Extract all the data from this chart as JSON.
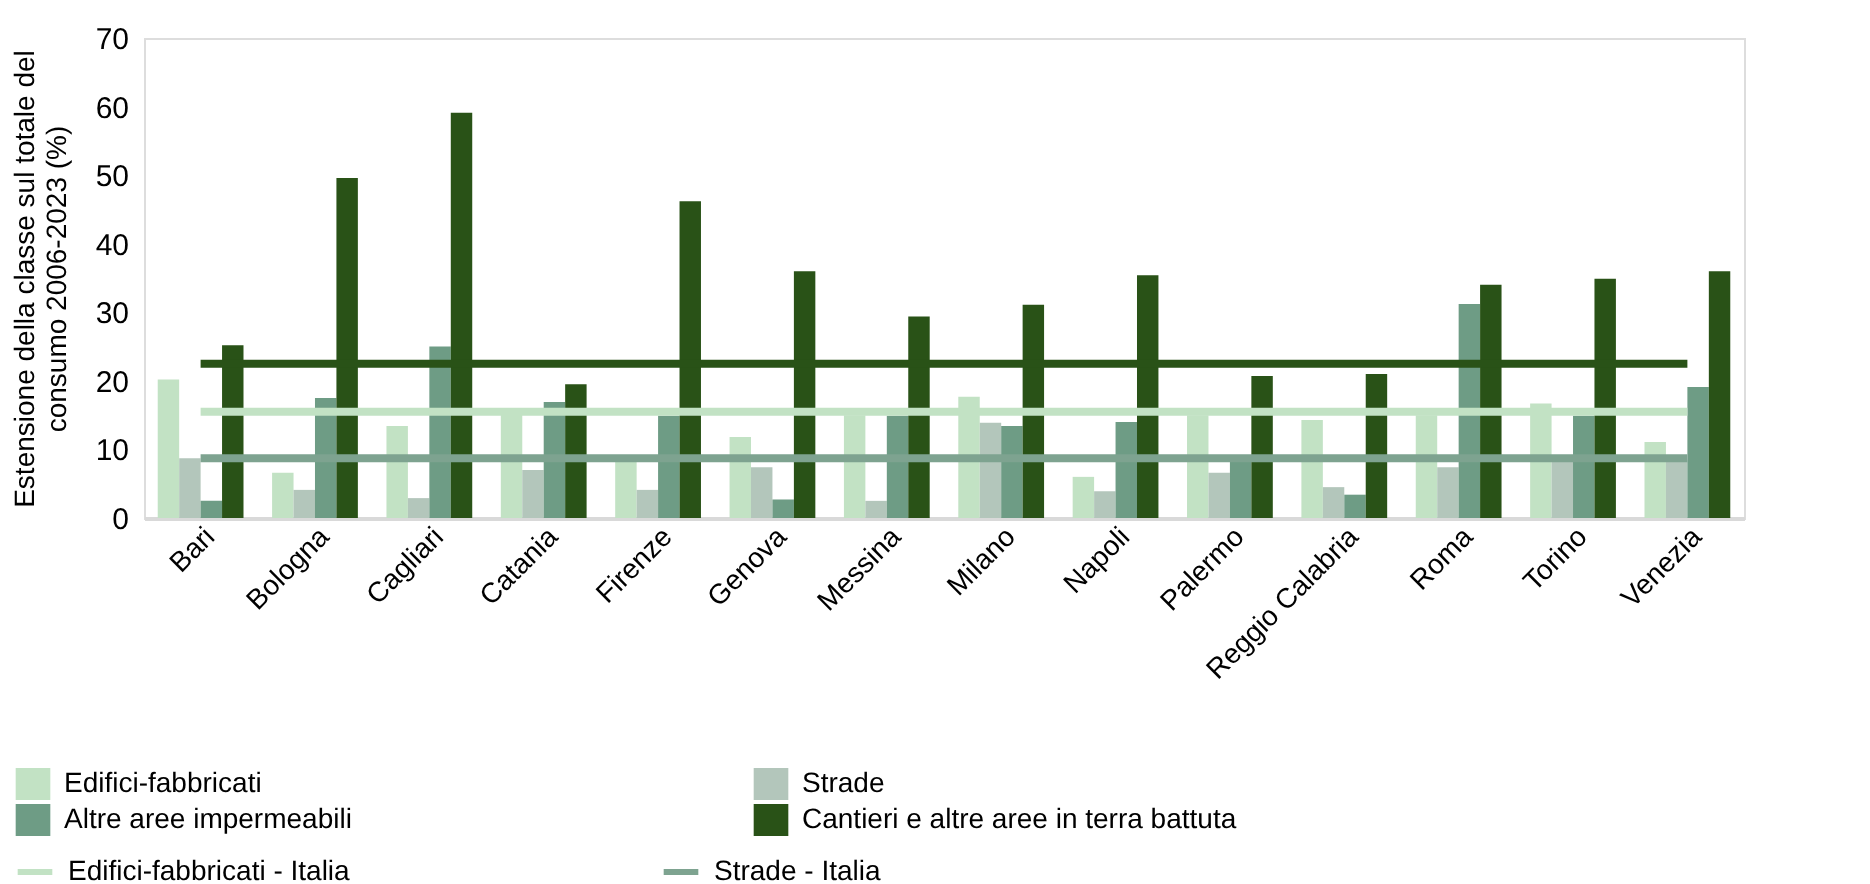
{
  "chart_data": {
    "type": "bar",
    "ylabel": "Estensione della classe sul totale del consumo 2006-2023 (%)",
    "categories": [
      "Bari",
      "Bologna",
      "Cagliari",
      "Catania",
      "Firenze",
      "Genova",
      "Messina",
      "Milano",
      "Napoli",
      "Palermo",
      "Reggio Calabria",
      "Roma",
      "Torino",
      "Venezia"
    ],
    "series": [
      {
        "name": "Edifici-fabbricati",
        "color": "#c2e2c4",
        "values": [
          20.2,
          6.6,
          13.4,
          15.5,
          8.3,
          11.8,
          15.0,
          17.7,
          6.0,
          15.0,
          14.3,
          15.0,
          16.7,
          11.1
        ]
      },
      {
        "name": "Strade",
        "color": "#b3c6bb",
        "values": [
          8.7,
          4.1,
          2.9,
          7.0,
          4.1,
          7.4,
          2.5,
          13.9,
          3.9,
          6.6,
          4.5,
          7.4,
          8.5,
          8.5
        ]
      },
      {
        "name": "Altre aree impermeabili",
        "color": "#6e9c85",
        "values": [
          2.5,
          17.5,
          25.0,
          16.9,
          14.9,
          2.7,
          14.9,
          13.4,
          14.0,
          8.5,
          3.4,
          31.2,
          14.9,
          19.1
        ]
      },
      {
        "name": "Cantieri e altre aree in terra battuta",
        "color": "#295217",
        "values": [
          25.2,
          49.6,
          59.1,
          19.5,
          46.2,
          36.0,
          29.4,
          31.1,
          35.4,
          20.7,
          21.0,
          34.0,
          34.9,
          36.0
        ]
      },
      {
        "name": "Edifici-fabbricati - Italia",
        "type": "line",
        "color": "#c2e2c4",
        "values": [
          15.5,
          15.5,
          15.5,
          15.5,
          15.5,
          15.5,
          15.5,
          15.5,
          15.5,
          15.5,
          15.5,
          15.5,
          15.5,
          15.5
        ]
      },
      {
        "name": "Strade - Italia",
        "type": "line",
        "color": "#7ea390",
        "values": [
          8.7,
          8.7,
          8.7,
          8.7,
          8.7,
          8.7,
          8.7,
          8.7,
          8.7,
          8.7,
          8.7,
          8.7,
          8.7,
          8.7
        ]
      },
      {
        "type": "line",
        "color": "#295217",
        "values": [
          22.5,
          22.5,
          22.5,
          22.5,
          22.5,
          22.5,
          22.5,
          22.5,
          22.5,
          22.5,
          22.5,
          22.5,
          22.5,
          22.5
        ]
      }
    ],
    "ylim": [
      0,
      70
    ],
    "yticks": [
      0,
      10,
      20,
      30,
      40,
      50,
      60,
      70
    ],
    "grid": false,
    "legend": "bottom"
  }
}
